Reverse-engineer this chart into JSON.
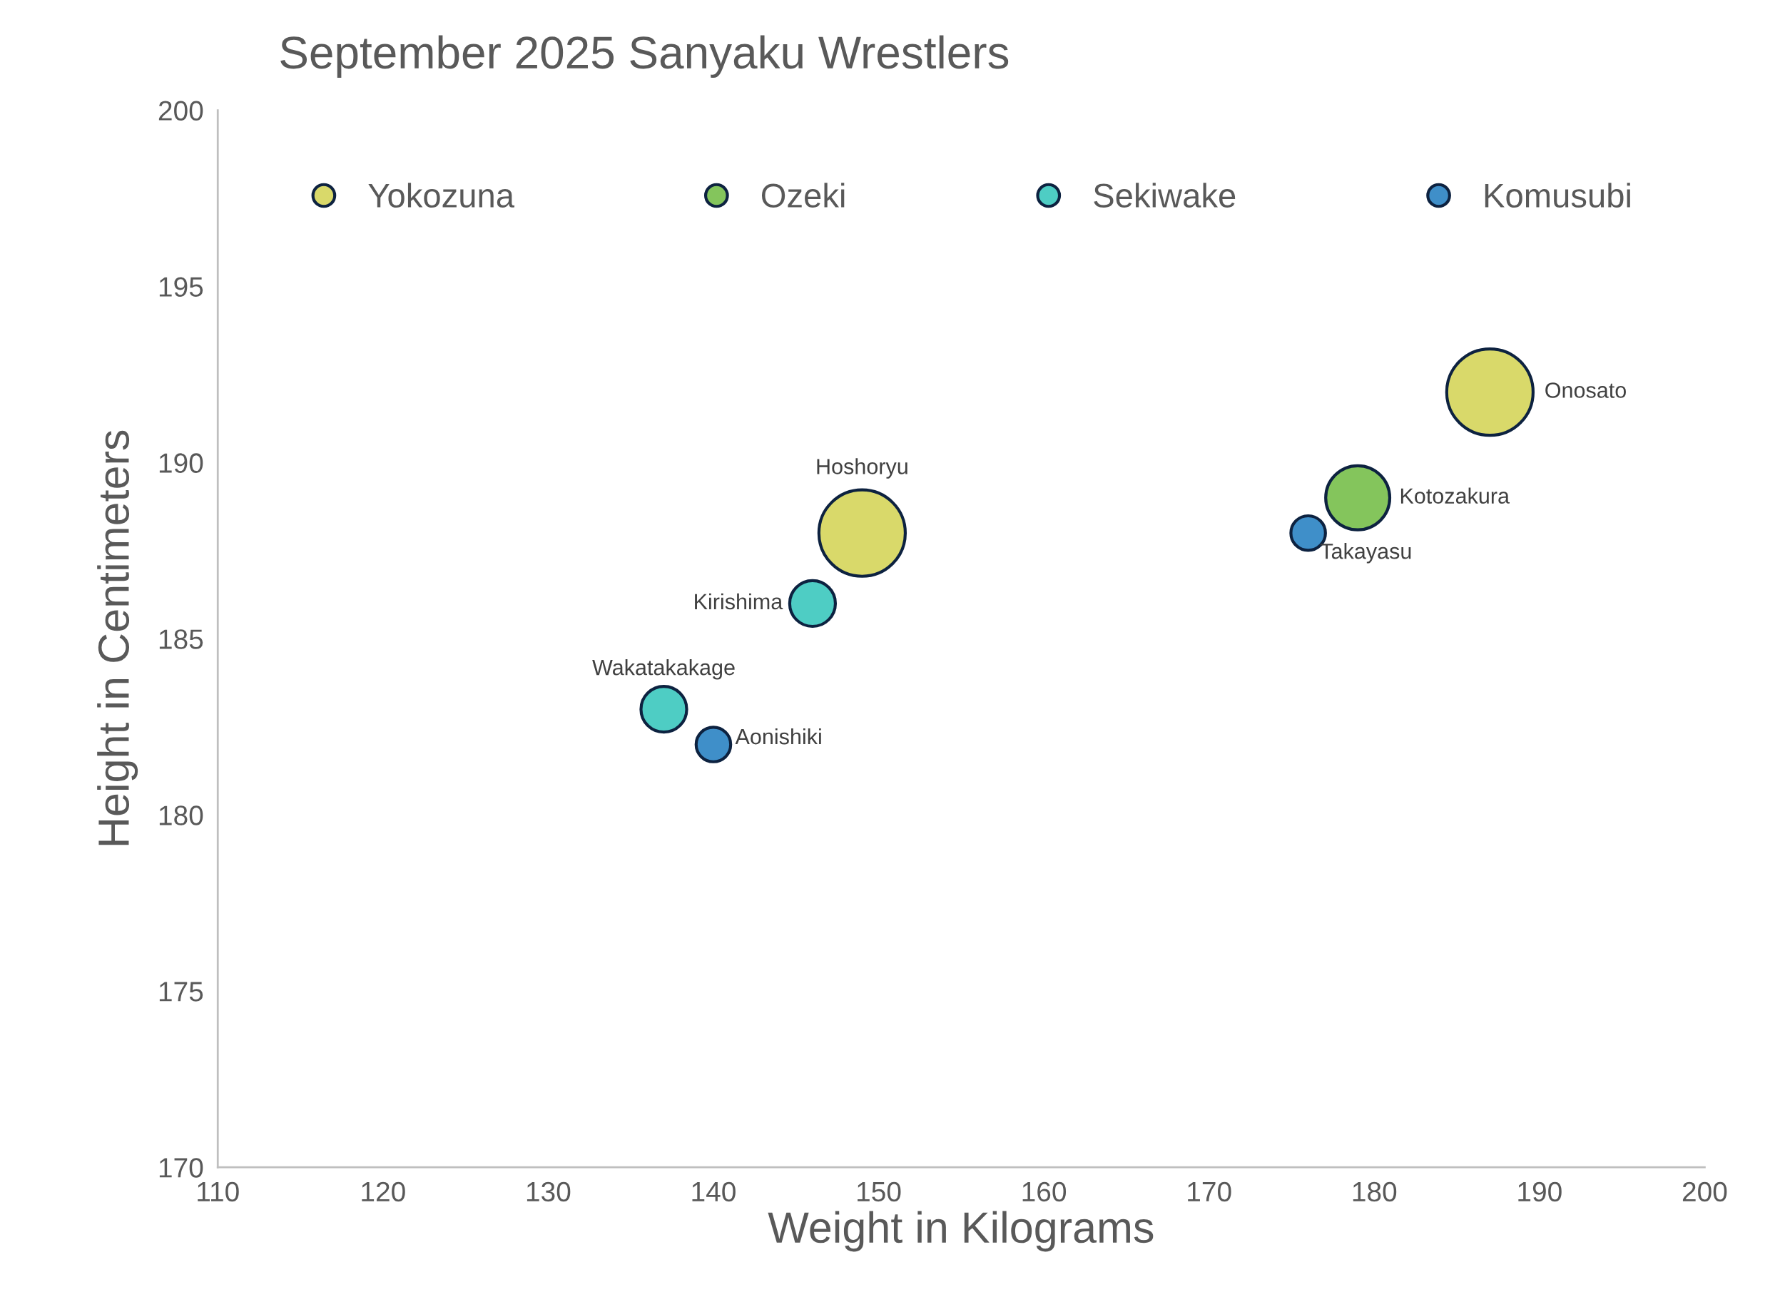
{
  "chart_data": {
    "type": "bubble",
    "title": "September 2025 Sanyaku Wrestlers",
    "xlabel": "Weight in Kilograms",
    "ylabel": "Height in Centimeters",
    "series": [
      {
        "name": "Yokozuna",
        "color": "#d9d96a",
        "x": [
          187,
          149
        ],
        "values": [
          192,
          188
        ],
        "sizes": [
          1,
          1
        ]
      },
      {
        "name": "Ozeki",
        "color": "#84c55c",
        "x": [
          179
        ],
        "values": [
          189
        ],
        "sizes": [
          0.55
        ]
      },
      {
        "name": "Sekiwake",
        "color": "#4ecdc4",
        "x": [
          146,
          137
        ],
        "values": [
          186,
          183
        ],
        "sizes": [
          0.28,
          0.28
        ]
      },
      {
        "name": "Komusubi",
        "color": "#3f8fc9",
        "x": [
          176,
          140
        ],
        "values": [
          188,
          182
        ],
        "sizes": [
          0.16,
          0.16
        ]
      }
    ],
    "annotations": [
      {
        "text": "Onosato",
        "x": 187,
        "y": 192
      },
      {
        "text": "Hoshoryu",
        "x": 149,
        "y": 188
      },
      {
        "text": "Kotozakura",
        "x": 179,
        "y": 189
      },
      {
        "text": "Takayasu",
        "x": 176,
        "y": 188
      },
      {
        "text": "Kirishima",
        "x": 146,
        "y": 186
      },
      {
        "text": "Wakatakakage",
        "x": 137,
        "y": 183
      },
      {
        "text": "Aonishiki",
        "x": 140,
        "y": 182
      }
    ],
    "xlim": [
      110,
      200
    ],
    "xticks": [
      110,
      120,
      130,
      140,
      150,
      160,
      170,
      180,
      190,
      200
    ],
    "ylim": [
      170,
      200
    ],
    "yticks": [
      170,
      175,
      180,
      185,
      190,
      195,
      200
    ],
    "grid": false,
    "legend": "top"
  }
}
